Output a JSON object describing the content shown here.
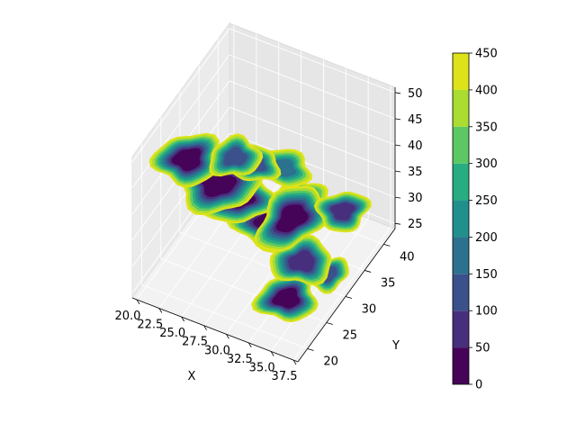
{
  "chart_data": {
    "type": "3d-contour-slices",
    "title": "",
    "xlabel": "X",
    "ylabel": "Y",
    "zlabel": "",
    "x_ticks": [
      "20.0",
      "22.5",
      "25.0",
      "27.5",
      "30.0",
      "32.5",
      "35.0",
      "37.5"
    ],
    "y_ticks": [
      "20",
      "25",
      "30",
      "35",
      "40"
    ],
    "z_ticks": [
      "25",
      "30",
      "35",
      "40",
      "45",
      "50"
    ],
    "xlim": [
      19.5,
      38
    ],
    "ylim": [
      17.5,
      43
    ],
    "zlim": [
      24,
      51
    ],
    "grid": true,
    "colorbar": {
      "levels": [
        0,
        50,
        100,
        150,
        200,
        250,
        300,
        350,
        400,
        450
      ],
      "labels": [
        "0",
        "50",
        "100",
        "150",
        "200",
        "250",
        "300",
        "350",
        "400",
        "450"
      ],
      "colors": [
        "#450457",
        "#472f7d",
        "#3b518b",
        "#2c718e",
        "#21908d",
        "#27ad81",
        "#5cc863",
        "#aadc32",
        "#dde318"
      ]
    },
    "slices": [
      {
        "z": 45,
        "blobs": [
          {
            "x": 22.5,
            "y": 25,
            "w": 3.2,
            "h": 4.5,
            "level": 0
          },
          {
            "x": 26.5,
            "y": 28,
            "w": 2.5,
            "h": 3.5,
            "level": 2
          }
        ]
      },
      {
        "z": 40,
        "blobs": [
          {
            "x": 25,
            "y": 27,
            "w": 4,
            "h": 5,
            "level": 0
          },
          {
            "x": 27,
            "y": 32,
            "w": 2.5,
            "h": 3,
            "level": 2
          }
        ]
      },
      {
        "z": 35,
        "blobs": [
          {
            "x": 26,
            "y": 30,
            "w": 3.5,
            "h": 4.5,
            "level": 0
          },
          {
            "x": 32,
            "y": 30,
            "w": 3,
            "h": 6,
            "level": 0
          },
          {
            "x": 28,
            "y": 37,
            "w": 3,
            "h": 3,
            "level": 3
          },
          {
            "x": 36,
            "y": 34,
            "w": 2.5,
            "h": 3.5,
            "level": 1
          }
        ]
      },
      {
        "z": 30,
        "blobs": [
          {
            "x": 29,
            "y": 32,
            "w": 4,
            "h": 4.5,
            "level": 0
          },
          {
            "x": 34,
            "y": 28,
            "w": 3,
            "h": 4,
            "level": 1
          },
          {
            "x": 30,
            "y": 38,
            "w": 2.5,
            "h": 2.5,
            "level": 4
          }
        ]
      },
      {
        "z": 27,
        "blobs": [
          {
            "x": 34,
            "y": 24,
            "w": 3,
            "h": 4,
            "level": 0
          },
          {
            "x": 36,
            "y": 30,
            "w": 2,
            "h": 3,
            "level": 2
          }
        ]
      }
    ]
  }
}
